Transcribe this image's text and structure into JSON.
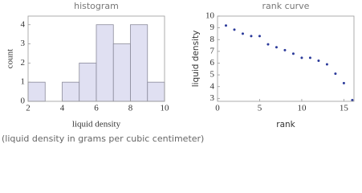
{
  "chart_data": [
    {
      "type": "histogram",
      "title": "histogram",
      "x_label": "liquid density",
      "y_label": "count",
      "bins": [
        2,
        3,
        4,
        5,
        6,
        7,
        8,
        9,
        10
      ],
      "counts": [
        1,
        0,
        1,
        2,
        4,
        3,
        4,
        1
      ],
      "color": "#e0e0f2",
      "xlim": [
        2,
        10
      ],
      "xticks": [
        2,
        4,
        6,
        8,
        10
      ],
      "ylim": [
        0,
        4.45
      ],
      "yticks": [
        0,
        1,
        2,
        3,
        4
      ]
    },
    {
      "type": "scatter",
      "title": "rank curve",
      "x_label": "rank",
      "y_label": "liquid density",
      "x": [
        1,
        2,
        3,
        4,
        5,
        6,
        7,
        8,
        9,
        10,
        11,
        12,
        13,
        14,
        15,
        16
      ],
      "values": [
        9.2,
        8.85,
        8.5,
        8.3,
        8.3,
        7.6,
        7.35,
        7.1,
        6.8,
        6.45,
        6.45,
        6.2,
        5.9,
        5.1,
        4.3,
        2.85
      ],
      "color": "#2b3a9a",
      "xlim": [
        0,
        16.2
      ],
      "xticks": [
        0,
        5,
        10,
        15
      ],
      "ylim": [
        2.75,
        10
      ],
      "yticks": [
        3,
        4,
        5,
        6,
        7,
        8,
        9,
        10
      ]
    }
  ],
  "footnote": "(liquid density in grams per cubic centimeter)"
}
